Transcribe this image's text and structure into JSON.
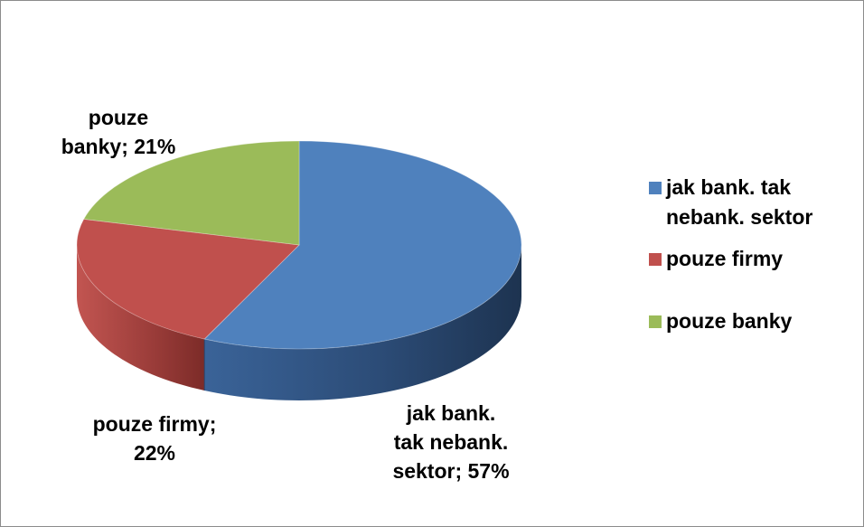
{
  "chart_data": {
    "type": "pie",
    "style": "3d",
    "categories": [
      "jak bank. tak nebank. sektor",
      "pouze firmy",
      "pouze banky"
    ],
    "values": [
      57,
      22,
      21
    ],
    "unit": "%",
    "colors": [
      "#4f81bd",
      "#c0504d",
      "#9bbb59"
    ],
    "data_labels": [
      "jak bank.\ntak nebank.\nsektor; 57%",
      "pouze firmy;\n22%",
      "pouze\nbanky; 21%"
    ],
    "legend": {
      "position": "right",
      "entries": [
        "jak bank. tak nebank. sektor",
        "pouze firmy",
        "pouze banky"
      ]
    }
  }
}
